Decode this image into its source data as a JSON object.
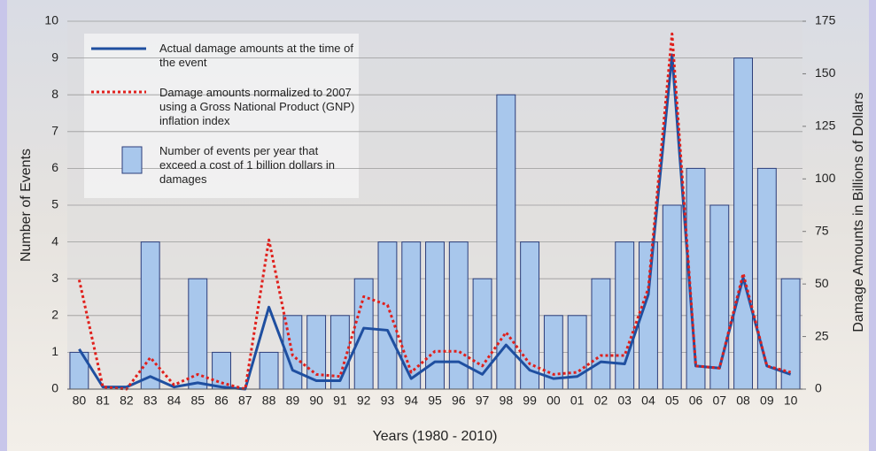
{
  "chart_data": {
    "type": "bar",
    "xlabel": "Years (1980 - 2010)",
    "ylabel": "Number of Events",
    "y2label": "Damage Amounts in Billions of Dollars",
    "categories": [
      "80",
      "81",
      "82",
      "83",
      "84",
      "85",
      "86",
      "87",
      "88",
      "89",
      "90",
      "91",
      "92",
      "93",
      "94",
      "95",
      "96",
      "97",
      "98",
      "99",
      "00",
      "01",
      "02",
      "03",
      "04",
      "05",
      "06",
      "07",
      "08",
      "09",
      "10"
    ],
    "series": [
      {
        "name": "Number of events per year that exceed a cost of 1 billion dollars in damages",
        "type": "bar",
        "color": "#a8c7ec",
        "axis": "y",
        "values": [
          1,
          0,
          0,
          4,
          0,
          3,
          1,
          0,
          1,
          2,
          2,
          2,
          3,
          4,
          4,
          4,
          4,
          3,
          8,
          4,
          2,
          2,
          3,
          4,
          4,
          5,
          6,
          5,
          9,
          6,
          3
        ]
      },
      {
        "name": "Actual damage amounts at the time of the event",
        "type": "line",
        "color": "#1f4fa0",
        "axis": "y2",
        "values": [
          19,
          1,
          1,
          6,
          1,
          3,
          1,
          0,
          39,
          9,
          4,
          4,
          29,
          28,
          5,
          13,
          13,
          7,
          21,
          9,
          5,
          6,
          13,
          12,
          45,
          159,
          11,
          10,
          53,
          11,
          7
        ]
      },
      {
        "name": "Damage amounts normalized to 2007 using a Gross National Product (GNP) inflation index",
        "type": "line",
        "dashed": true,
        "color": "#e0201c",
        "axis": "y2",
        "values": [
          52,
          1,
          0,
          15,
          2,
          7,
          3,
          0,
          71,
          16,
          7,
          6,
          44,
          40,
          8,
          18,
          18,
          11,
          27,
          12,
          7,
          8,
          16,
          16,
          48,
          169,
          11,
          10,
          55,
          11,
          8
        ]
      }
    ],
    "ylim": [
      0,
      10
    ],
    "yticks": [
      0,
      1,
      2,
      3,
      4,
      5,
      6,
      7,
      8,
      9,
      10
    ],
    "y2lim": [
      0,
      175
    ],
    "y2ticks": [
      0,
      25,
      50,
      75,
      100,
      125,
      150,
      175
    ],
    "grid": true,
    "legend": "upper left"
  }
}
